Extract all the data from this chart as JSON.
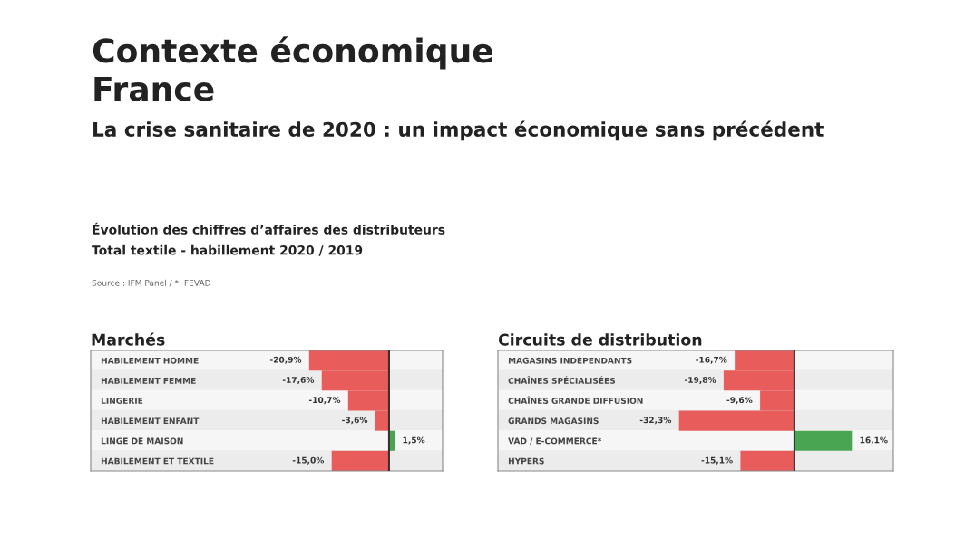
{
  "chart_data": [
    {
      "type": "bar",
      "orientation": "horizontal",
      "title": "Marchés",
      "annotations": [
        "Contexte économique",
        "France",
        "La crise sanitaire de 2020 : un impact économique sans précédent",
        "Évolution des chiffres d’affaires des distributeurs",
        "Total textile - habillement 2020 / 2019",
        "Source : IFM Panel / *: FEVAD"
      ],
      "categories": [
        "HABILEMENT HOMME",
        "HABILEMENT FEMME",
        "LINGERIE",
        "HABILEMENT ENFANT",
        "LINGE DE MAISON",
        "HABILEMENT ET TEXTILE"
      ],
      "values": [
        -20.9,
        -17.6,
        -10.7,
        -3.6,
        1.5,
        -15.0
      ],
      "colors": [
        "#e85c5c",
        "#e85c5c",
        "#e85c5c",
        "#e85c5c",
        "#4aa552",
        "#e85c5c"
      ],
      "value_labels": [
        "-20,9%",
        "-17,6%",
        "-10,7%",
        "-3,6%",
        "1,5%",
        "-15,0%"
      ],
      "xlim": [
        -78,
        14
      ],
      "tick_labels": "y",
      "ref_lines": [
        {
          "axis": "x",
          "value": 0,
          "color": "#333333"
        }
      ]
    },
    {
      "type": "bar",
      "orientation": "horizontal",
      "title": "Circuits de distribution",
      "categories": [
        "MAGASINS INDÉPENDANTS",
        "CHAÎNES SPÉCIALISÉES",
        "CHAÎNES GRANDE DIFFUSION",
        "GRANDS MAGASINS",
        "VAD / E-COMMERCE*",
        "HYPERS"
      ],
      "values": [
        -16.7,
        -19.8,
        -9.6,
        -32.3,
        16.1,
        -15.1
      ],
      "colors": [
        "#e85c5c",
        "#e85c5c",
        "#e85c5c",
        "#e85c5c",
        "#4aa552",
        "#e85c5c"
      ],
      "value_labels": [
        "-16,7%",
        "-19,8%",
        "-9,6%",
        "-32,3%",
        "16,1%",
        "-15,1%"
      ],
      "xlim": [
        -83,
        27.7
      ],
      "tick_labels": "y",
      "ref_lines": [
        {
          "axis": "x",
          "value": 0,
          "color": "#333333"
        }
      ]
    }
  ]
}
